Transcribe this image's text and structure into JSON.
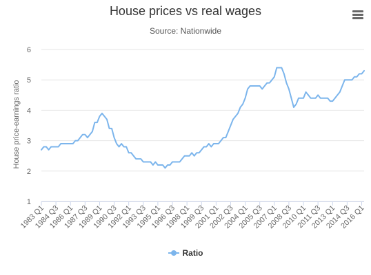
{
  "chart_data": {
    "type": "line",
    "title": "House prices vs real wages",
    "subtitle": "Source: Nationwide",
    "ylabel": "House price-earnings ratio",
    "xlabel": "",
    "ylim": [
      1,
      6
    ],
    "yticks": [
      1,
      2,
      3,
      4,
      5,
      6
    ],
    "grid": true,
    "legend_position": "bottom-center",
    "x_tick_labels": [
      "1983 Q1",
      "1984 Q3",
      "1986 Q1",
      "1987 Q3",
      "1989 Q1",
      "1990 Q3",
      "1992 Q1",
      "1993 Q3",
      "1995 Q1",
      "1996 Q3",
      "1998 Q1",
      "1999 Q3",
      "2001 Q1",
      "2002 Q3",
      "2004 Q1",
      "2005 Q3",
      "2007 Q1",
      "2008 Q3",
      "2010 Q1",
      "2011 Q3",
      "2013 Q1",
      "2014 Q3",
      "2016 Q1"
    ],
    "series": [
      {
        "name": "Ratio",
        "color": "#7cb5ec",
        "x_start": "1983 Q1",
        "frequency": "quarterly",
        "values": [
          2.7,
          2.8,
          2.8,
          2.7,
          2.8,
          2.8,
          2.8,
          2.8,
          2.9,
          2.9,
          2.9,
          2.9,
          2.9,
          2.9,
          3.0,
          3.0,
          3.1,
          3.2,
          3.2,
          3.1,
          3.2,
          3.3,
          3.6,
          3.6,
          3.8,
          3.9,
          3.8,
          3.7,
          3.4,
          3.4,
          3.1,
          2.9,
          2.8,
          2.9,
          2.8,
          2.8,
          2.6,
          2.6,
          2.5,
          2.4,
          2.4,
          2.4,
          2.3,
          2.3,
          2.3,
          2.3,
          2.2,
          2.3,
          2.2,
          2.2,
          2.2,
          2.1,
          2.2,
          2.2,
          2.3,
          2.3,
          2.3,
          2.3,
          2.4,
          2.5,
          2.5,
          2.5,
          2.6,
          2.5,
          2.6,
          2.6,
          2.7,
          2.8,
          2.8,
          2.9,
          2.8,
          2.9,
          2.9,
          2.9,
          3.0,
          3.1,
          3.1,
          3.3,
          3.5,
          3.7,
          3.8,
          3.9,
          4.1,
          4.2,
          4.4,
          4.7,
          4.8,
          4.8,
          4.8,
          4.8,
          4.8,
          4.7,
          4.8,
          4.9,
          4.9,
          5.0,
          5.1,
          5.4,
          5.4,
          5.4,
          5.2,
          4.9,
          4.7,
          4.4,
          4.1,
          4.2,
          4.4,
          4.4,
          4.4,
          4.6,
          4.5,
          4.4,
          4.4,
          4.4,
          4.5,
          4.4,
          4.4,
          4.4,
          4.4,
          4.3,
          4.3,
          4.4,
          4.5,
          4.6,
          4.8,
          5.0,
          5.0,
          5.0,
          5.0,
          5.1,
          5.1,
          5.2,
          5.2,
          5.3
        ]
      }
    ]
  },
  "menu": {
    "icon": "hamburger-menu-icon"
  },
  "colors": {
    "series": "#7cb5ec",
    "grid": "#e6e6e6",
    "axis_line": "#ccd6eb",
    "tick_text": "#666666",
    "title_text": "#333333"
  }
}
